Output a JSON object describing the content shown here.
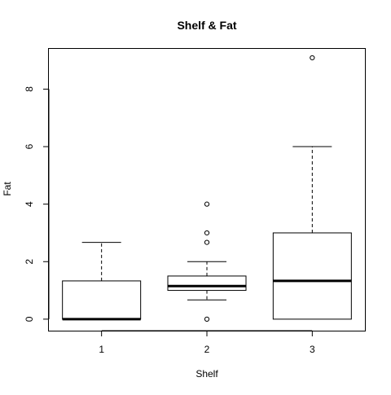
{
  "chart_data": {
    "type": "boxplot",
    "title": "Shelf & Fat",
    "xlabel": "Shelf",
    "ylabel": "Fat",
    "categories": [
      "1",
      "2",
      "3"
    ],
    "ylim": [
      -0.4,
      9.4
    ],
    "yticks": [
      0,
      2,
      4,
      6,
      8
    ],
    "grid": false,
    "boxes": [
      {
        "category": "1",
        "whisker_low": 0,
        "q1": 0,
        "median": 0,
        "q3": 1.33,
        "whisker_high": 2.67,
        "outliers": []
      },
      {
        "category": "2",
        "whisker_low": 0.67,
        "q1": 1.0,
        "median": 1.15,
        "q3": 1.5,
        "whisker_high": 2.0,
        "outliers": [
          0,
          2.67,
          3.0,
          4.0
        ]
      },
      {
        "category": "3",
        "whisker_low": 0,
        "q1": 0,
        "median": 1.33,
        "q3": 3.0,
        "whisker_high": 6.0,
        "outliers": [
          9.09
        ]
      }
    ]
  }
}
